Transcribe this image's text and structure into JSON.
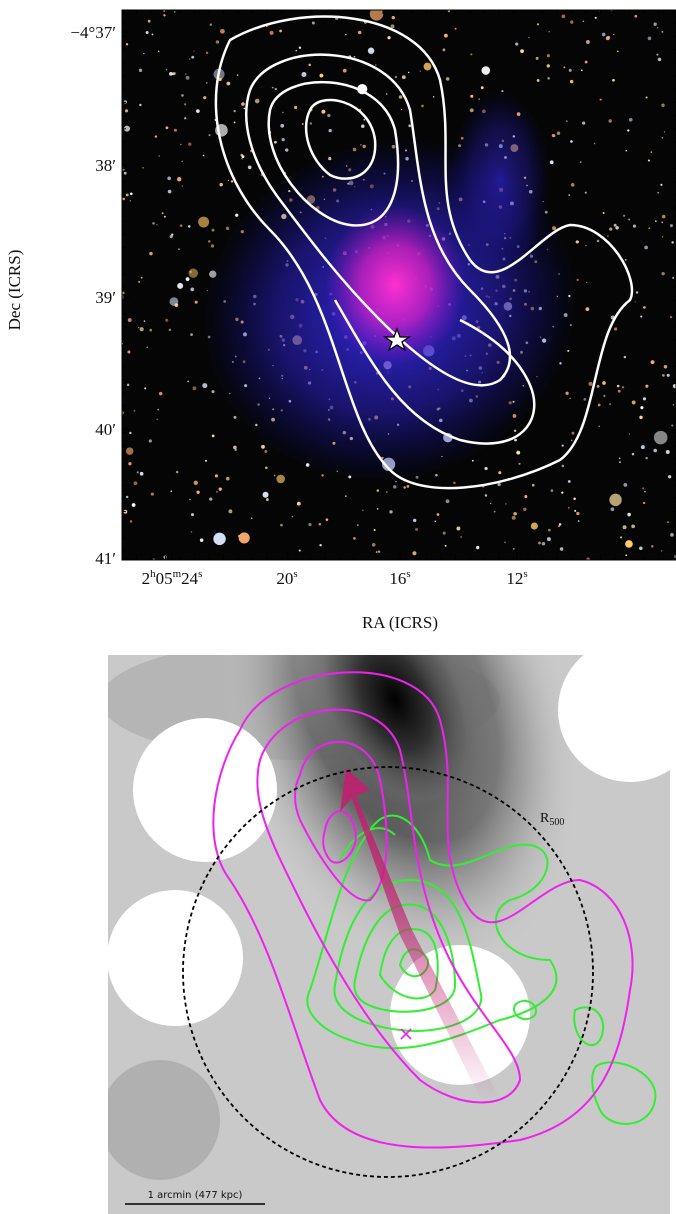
{
  "top_panel": {
    "dec_ticks": [
      "−4°37′",
      "38′",
      "39′",
      "40′",
      "41′"
    ],
    "ra_ticks": [
      [
        "2",
        "h",
        "05",
        "m",
        "24",
        "s"
      ],
      [
        "20",
        "s"
      ],
      [
        "16",
        "s"
      ],
      [
        "12",
        "s"
      ]
    ],
    "y_label": "Dec (ICRS)",
    "x_label": "RA (ICRS)"
  },
  "bottom_panel": {
    "r500_label": [
      "R",
      "500"
    ],
    "scale_bar": "1 arcmin (477 kpc)"
  }
}
